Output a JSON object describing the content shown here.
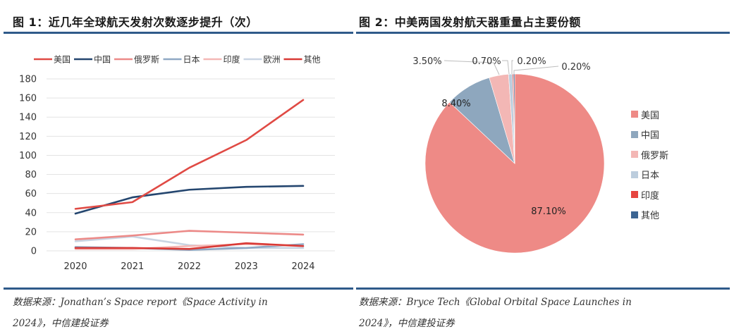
{
  "figure1": {
    "title": "图 1：近几年全球航天发射次数逐步提升（次）",
    "source_line1": "数据来源：Jonathan’s Space report《Space Activity in",
    "source_line2": "2024》，中信建投证券"
  },
  "figure2": {
    "title": "图 2：中美两国发射航天器重量占主要份额",
    "source_line1": "数据来源：Bryce Tech《Global Orbital Space Launches in",
    "source_line2": "2024》，中信建投证券"
  },
  "colors": {
    "rule": "#2f5a8a"
  },
  "chart_data": [
    {
      "type": "line",
      "title": "近几年全球航天发射次数逐步提升（次）",
      "xlabel": "",
      "ylabel": "",
      "x": [
        "2020",
        "2021",
        "2022",
        "2023",
        "2024"
      ],
      "ylim": [
        0,
        180
      ],
      "yticks": [
        0,
        20,
        40,
        60,
        80,
        100,
        120,
        140,
        160,
        180
      ],
      "grid": true,
      "legend_position": "top",
      "series": [
        {
          "name": "美国",
          "color": "#e04a44",
          "values": [
            44,
            51,
            87,
            116,
            158
          ]
        },
        {
          "name": "中国",
          "color": "#24466f",
          "values": [
            39,
            56,
            64,
            67,
            68
          ]
        },
        {
          "name": "俄罗斯",
          "color": "#ec8a88",
          "values": [
            12,
            16,
            21,
            19,
            17
          ]
        },
        {
          "name": "日本",
          "color": "#8fa8c4",
          "values": [
            4,
            3,
            1,
            3,
            7
          ]
        },
        {
          "name": "印度",
          "color": "#f4b8b6",
          "values": [
            2,
            2,
            5,
            7,
            5
          ]
        },
        {
          "name": "欧洲",
          "color": "#c9d5e3",
          "values": [
            10,
            15,
            6,
            3,
            3
          ]
        },
        {
          "name": "其他",
          "color": "#d93a36",
          "values": [
            3,
            3,
            2,
            8,
            5
          ]
        }
      ]
    },
    {
      "type": "pie",
      "title": "中美两国发射航天器重量占主要份额",
      "legend_position": "right",
      "slices": [
        {
          "name": "美国",
          "value": 87.1,
          "label": "87.10%",
          "color": "#ee8a86"
        },
        {
          "name": "中国",
          "value": 8.4,
          "label": "8.40%",
          "color": "#8ea7be"
        },
        {
          "name": "俄罗斯",
          "value": 3.5,
          "label": "3.50%",
          "color": "#f3b7b5"
        },
        {
          "name": "日本",
          "value": 0.7,
          "label": "0.70%",
          "color": "#bccddd"
        },
        {
          "name": "印度",
          "value": 0.2,
          "label": "0.20%",
          "color": "#e6453f"
        },
        {
          "name": "其他",
          "value": 0.2,
          "label": "0.20%",
          "color": "#3c6593"
        }
      ]
    }
  ]
}
